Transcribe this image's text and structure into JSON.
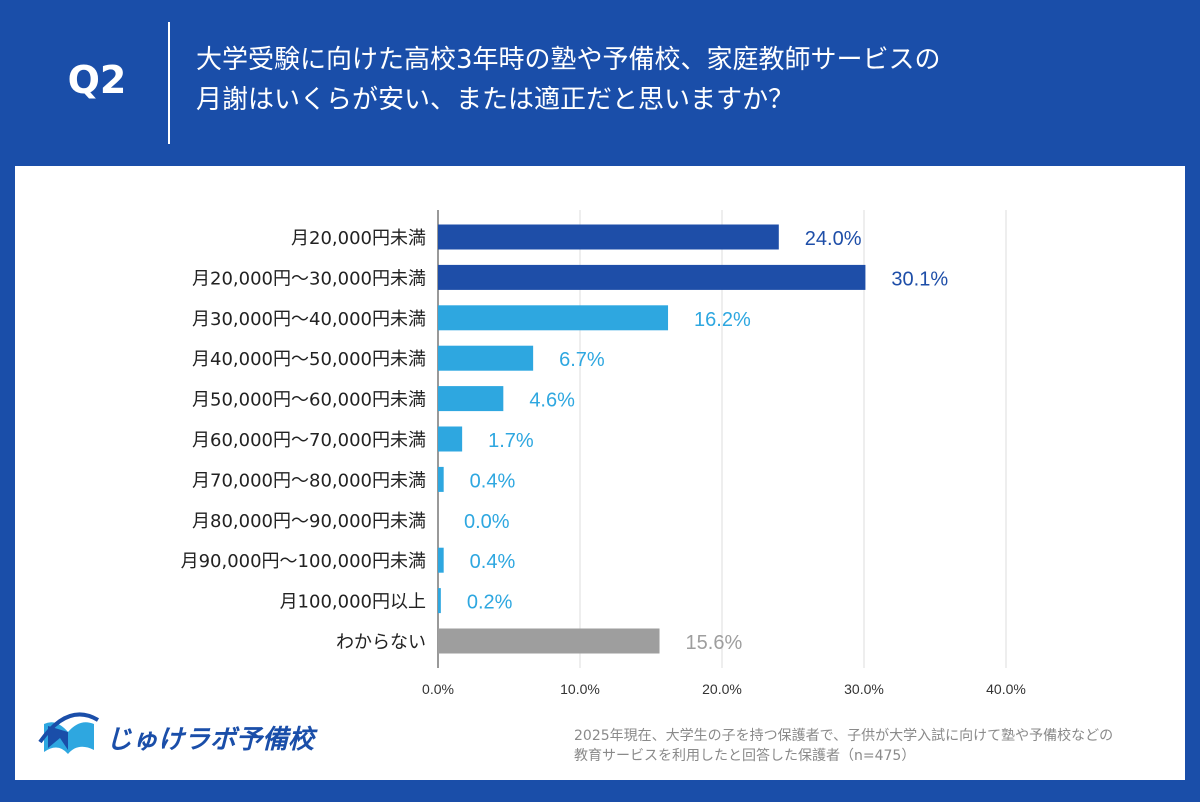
{
  "header": {
    "question_number": "Q2",
    "title_line1": "大学受験に向けた高校3年時の塾や予備校、家庭教師サービスの",
    "title_line2": "月謝はいくらが安い、または適正だと思いますか？"
  },
  "footer": {
    "logo_text": "じゅけラボ予備校",
    "note_line1": "2025年現在、大学生の子を持つ保護者で、子供が大学入試に向けて塾や予備校などの",
    "note_line2": "教育サービスを利用したと回答した保護者（n=475）"
  },
  "colors": {
    "background": "#1a4ea9",
    "dark_blue": "#1e4ea8",
    "light_blue": "#2ea7e0",
    "gray": "#9e9e9e"
  },
  "chart_data": {
    "type": "bar",
    "orientation": "horizontal",
    "categories": [
      "月20,000円未満",
      "月20,000円～30,000円未満",
      "月30,000円～40,000円未満",
      "月40,000円～50,000円未満",
      "月50,000円～60,000円未満",
      "月60,000円～70,000円未満",
      "月70,000円～80,000円未満",
      "月80,000円～90,000円未満",
      "月90,000円～100,000円未満",
      "月100,000円以上",
      "わからない"
    ],
    "values": [
      24.0,
      30.1,
      16.2,
      6.7,
      4.6,
      1.7,
      0.4,
      0.0,
      0.4,
      0.2,
      15.6
    ],
    "data_labels": [
      "24.0%",
      "30.1%",
      "16.2%",
      "6.7%",
      "4.6%",
      "1.7%",
      "0.4%",
      "0.0%",
      "0.4%",
      "0.2%",
      "15.6%"
    ],
    "bar_colors": [
      "#1e4ea8",
      "#1e4ea8",
      "#2ea7e0",
      "#2ea7e0",
      "#2ea7e0",
      "#2ea7e0",
      "#2ea7e0",
      "#2ea7e0",
      "#2ea7e0",
      "#2ea7e0",
      "#9e9e9e"
    ],
    "xlim": [
      0,
      40
    ],
    "xticks": [
      "0.0%",
      "10.0%",
      "20.0%",
      "30.0%",
      "40.0%"
    ],
    "grid": true
  }
}
